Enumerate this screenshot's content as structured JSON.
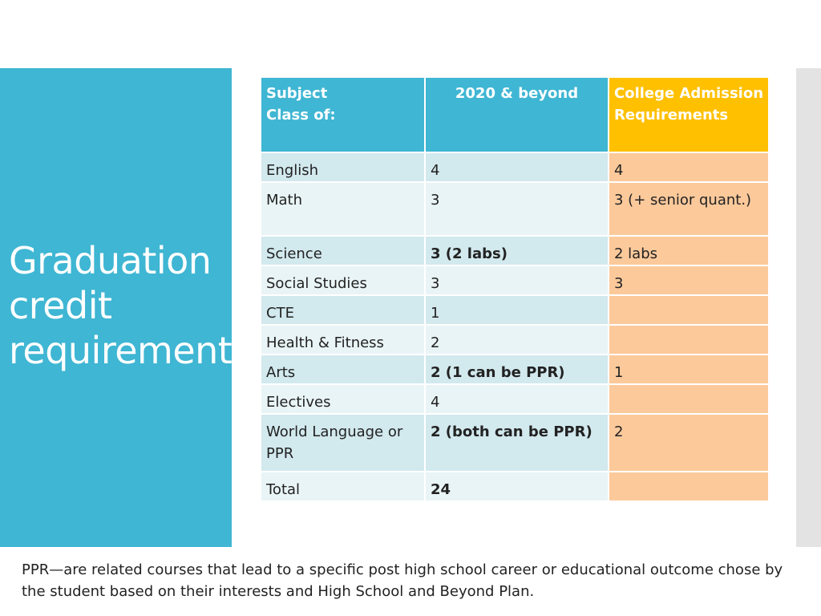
{
  "title": "Graduation credit requirements",
  "table": {
    "header": {
      "subject": "Subject\nClass of:",
      "year": "2020 & beyond",
      "college": "College Admission Requirements"
    },
    "rows": [
      {
        "subject": "English",
        "credits": "4",
        "college": "4",
        "credits_bold": false
      },
      {
        "subject": "Math",
        "credits": "3",
        "college": "3 (+ senior quant.)",
        "credits_bold": false
      },
      {
        "subject": "Science",
        "credits": "3 (2 labs)",
        "college": "2 labs",
        "credits_bold": true
      },
      {
        "subject": "Social Studies",
        "credits": "3",
        "college": "3",
        "credits_bold": false
      },
      {
        "subject": "CTE",
        "credits": "1",
        "college": "",
        "credits_bold": false
      },
      {
        "subject": "Health & Fitness",
        "credits": "2",
        "college": "",
        "credits_bold": false
      },
      {
        "subject": "Arts",
        "credits": "2 (1 can be PPR)",
        "college": "1",
        "credits_bold": true
      },
      {
        "subject": "Electives",
        "credits": "4",
        "college": "",
        "credits_bold": false
      },
      {
        "subject": "World Language or PPR",
        "credits": "2 (both can be PPR)",
        "college": "2",
        "credits_bold": true
      },
      {
        "subject": "Total",
        "credits": "24",
        "college": "",
        "credits_bold": true
      }
    ]
  },
  "footnote": "PPR—are related courses that lead to a specific post high school career or educational outcome chose by the student based on their interests and High School and Beyond Plan.",
  "colors": {
    "accent": "#3fb6d3",
    "college_header": "#ffc000",
    "college_cells": "#fcc99b",
    "row_dark": "#d2e9ee",
    "row_light": "#e9f4f6",
    "side_bar": "#e3e3e3"
  }
}
